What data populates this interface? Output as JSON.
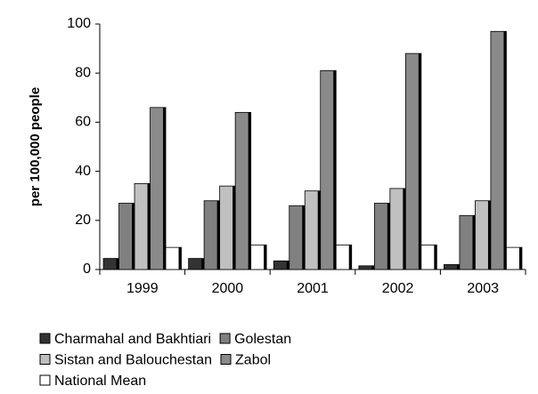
{
  "chart_data": {
    "type": "bar",
    "ylabel": "per 100,000 people",
    "categories": [
      "1999",
      "2000",
      "2001",
      "2002",
      "2003"
    ],
    "series": [
      {
        "name": "Charmahal and Bakhtiari",
        "color": "#333333",
        "values": [
          4.5,
          4.5,
          3.5,
          1.5,
          2
        ]
      },
      {
        "name": "Golestan",
        "color": "#808080",
        "values": [
          27,
          28,
          26,
          27,
          22
        ]
      },
      {
        "name": "Sistan and Balouchestan",
        "color": "#c0c0c0",
        "values": [
          35,
          34,
          32,
          33,
          28
        ]
      },
      {
        "name": "Zabol",
        "color": "#8a8a8a",
        "values": [
          66,
          64,
          81,
          88,
          97
        ]
      },
      {
        "name": "National Mean",
        "color": "#ffffff",
        "values": [
          9,
          10,
          10,
          10,
          9
        ]
      }
    ],
    "ylim": [
      0,
      100
    ],
    "yticks": [
      0,
      20,
      40,
      60,
      80,
      100
    ],
    "grid": false,
    "legend": "bottom"
  }
}
